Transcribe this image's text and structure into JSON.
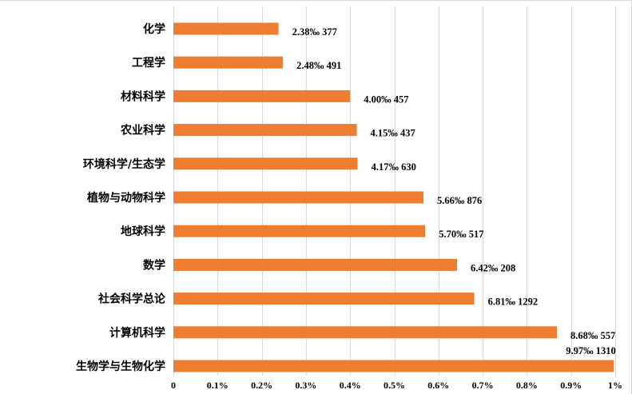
{
  "colors": {
    "bar": "#ED7D31",
    "grid": "#D9D9D9",
    "text": "#000000"
  },
  "chart_data": {
    "type": "bar",
    "orientation": "horizontal",
    "categories": [
      "化学",
      "工程学",
      "材料科学",
      "农业科学",
      "环境科学/生态学",
      "植物与动物科学",
      "地球科学",
      "数学",
      "社会科学总论",
      "计算机科学",
      "生物学与生物化学"
    ],
    "values": [
      2.38,
      2.48,
      4.0,
      4.15,
      4.17,
      5.66,
      5.7,
      6.42,
      6.81,
      8.68,
      9.97
    ],
    "value_unit": "‰",
    "counts": [
      377,
      491,
      457,
      437,
      630,
      876,
      517,
      208,
      1292,
      557,
      1310
    ],
    "data_labels": [
      "2.38‰ 377",
      "2.48‰ 491",
      "4.00‰ 457",
      "4.15‰ 437",
      "4.17‰ 630",
      "5.66‰ 876",
      "5.70‰ 517",
      "6.42‰ 208",
      "6.81‰ 1292",
      "8.68‰ 557",
      "9.97‰ 1310"
    ],
    "x_ticks": [
      "0",
      "0.1%",
      "0.2%",
      "0.3%",
      "0.4%",
      "0.5%",
      "0.6%",
      "0.7%",
      "0.8%",
      "0.9%",
      "1%"
    ],
    "xlim": [
      0,
      10
    ],
    "title": "",
    "xlabel": "",
    "ylabel": "",
    "grid": "vertical",
    "legend": "none"
  }
}
